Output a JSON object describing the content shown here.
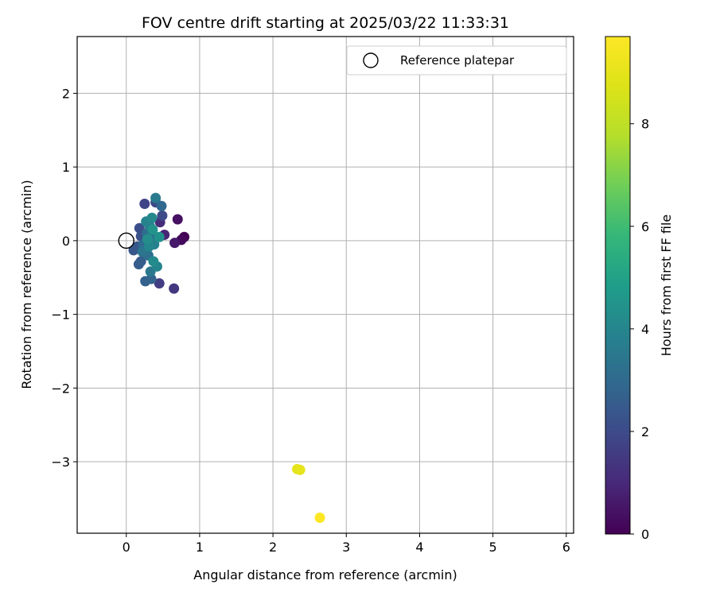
{
  "chart_data": {
    "type": "scatter",
    "title": "FOV centre drift starting at 2025/03/22 11:33:31",
    "xlabel": "Angular distance from reference (arcmin)",
    "ylabel": "Rotation from reference (arcmin)",
    "xlim": [
      -0.67,
      6.1
    ],
    "ylim": [
      -3.97,
      2.77
    ],
    "xticks": [
      0,
      1,
      2,
      3,
      4,
      5,
      6
    ],
    "yticks": [
      -3,
      -2,
      -1,
      0,
      1,
      2
    ],
    "xtick_labels": [
      "0",
      "1",
      "2",
      "3",
      "4",
      "5",
      "6"
    ],
    "ytick_labels": [
      "−3",
      "−2",
      "−1",
      "0",
      "1",
      "2"
    ],
    "grid": true,
    "legend": {
      "location": "top-right",
      "entries": [
        "Reference platepar"
      ]
    },
    "reference_point": {
      "x": 0,
      "y": 0,
      "label": "Reference platepar"
    },
    "colorbar": {
      "label": "Hours from first FF file",
      "colormap": "viridis",
      "range": [
        0,
        9.7
      ],
      "ticks": [
        0,
        2,
        4,
        6,
        8
      ],
      "tick_labels": [
        "0",
        "2",
        "4",
        "6",
        "8"
      ]
    },
    "points": [
      {
        "x": 0.79,
        "y": 0.05,
        "c": 0.0
      },
      {
        "x": 0.75,
        "y": 0.01,
        "c": 0.2
      },
      {
        "x": 0.7,
        "y": 0.29,
        "c": 0.4
      },
      {
        "x": 0.66,
        "y": -0.03,
        "c": 0.6
      },
      {
        "x": 0.52,
        "y": 0.08,
        "c": 0.9
      },
      {
        "x": 0.46,
        "y": 0.25,
        "c": 1.1
      },
      {
        "x": 0.65,
        "y": -0.65,
        "c": 1.4
      },
      {
        "x": 0.45,
        "y": -0.58,
        "c": 1.6
      },
      {
        "x": 0.25,
        "y": 0.5,
        "c": 1.8
      },
      {
        "x": 0.4,
        "y": 0.52,
        "c": 1.9
      },
      {
        "x": 0.49,
        "y": 0.34,
        "c": 2.0
      },
      {
        "x": 0.18,
        "y": 0.17,
        "c": 2.1
      },
      {
        "x": 0.2,
        "y": 0.06,
        "c": 2.2
      },
      {
        "x": 0.15,
        "y": -0.08,
        "c": 2.3
      },
      {
        "x": 0.1,
        "y": -0.13,
        "c": 2.4
      },
      {
        "x": 0.17,
        "y": -0.32,
        "c": 2.5
      },
      {
        "x": 0.2,
        "y": -0.28,
        "c": 2.6
      },
      {
        "x": 0.26,
        "y": -0.55,
        "c": 2.7
      },
      {
        "x": 0.34,
        "y": -0.52,
        "c": 2.8
      },
      {
        "x": 0.48,
        "y": 0.47,
        "c": 2.9
      },
      {
        "x": 0.23,
        "y": -0.05,
        "c": 3.0
      },
      {
        "x": 0.28,
        "y": 0.1,
        "c": 3.1
      },
      {
        "x": 0.3,
        "y": -0.2,
        "c": 3.2
      },
      {
        "x": 0.35,
        "y": 0.08,
        "c": 3.3
      },
      {
        "x": 0.22,
        "y": -0.15,
        "c": 3.4
      },
      {
        "x": 0.33,
        "y": -0.42,
        "c": 3.5
      },
      {
        "x": 0.4,
        "y": 0.58,
        "c": 3.6
      },
      {
        "x": 0.32,
        "y": 0.2,
        "c": 3.7
      },
      {
        "x": 0.38,
        "y": -0.05,
        "c": 3.8
      },
      {
        "x": 0.27,
        "y": 0.26,
        "c": 3.9
      },
      {
        "x": 0.42,
        "y": -0.35,
        "c": 4.0
      },
      {
        "x": 0.31,
        "y": -0.08,
        "c": 4.0
      },
      {
        "x": 0.35,
        "y": 0.31,
        "c": 4.1
      },
      {
        "x": 0.37,
        "y": -0.28,
        "c": 4.2
      },
      {
        "x": 0.29,
        "y": 0.02,
        "c": 4.3
      },
      {
        "x": 0.45,
        "y": 0.05,
        "c": 4.4
      },
      {
        "x": 0.36,
        "y": 0.15,
        "c": 4.5
      },
      {
        "x": 2.33,
        "y": -3.1,
        "c": 8.9
      },
      {
        "x": 2.37,
        "y": -3.11,
        "c": 9.0
      },
      {
        "x": 2.64,
        "y": -3.76,
        "c": 9.7
      }
    ]
  }
}
